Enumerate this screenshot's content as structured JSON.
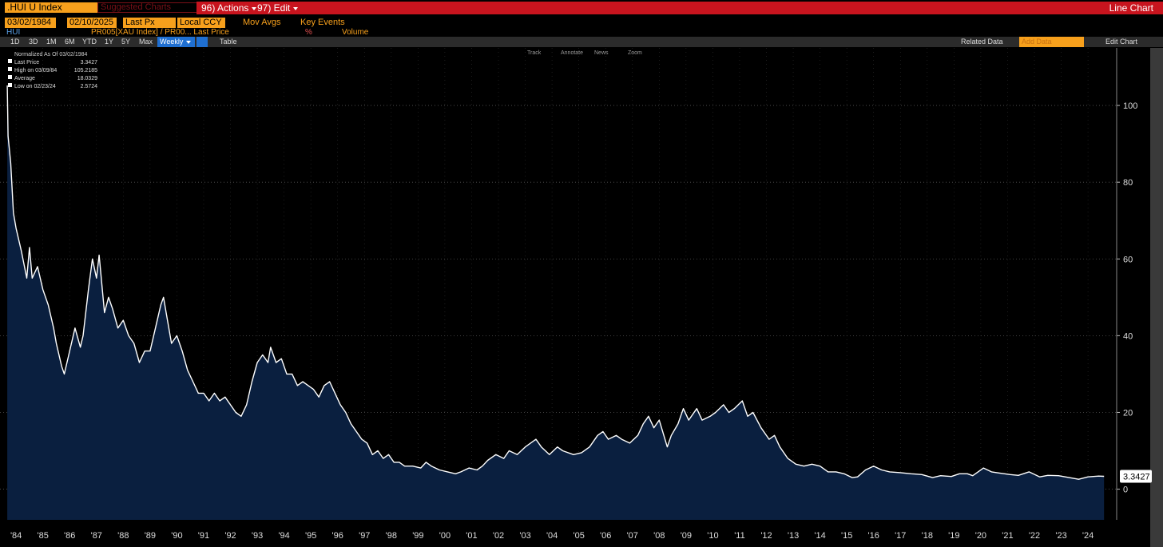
{
  "toolbar": {
    "security": ".HUI U Index",
    "suggested": "Suggested Charts",
    "actions": "96) Actions",
    "edit": "97) Edit",
    "view": "Line Chart"
  },
  "settings": {
    "start": "03/02/1984",
    "end": "02/10/2025",
    "field": "Last Px",
    "currency": "Local CCY",
    "mov_avgs": "Mov Avgs",
    "key_events": "Key Events"
  },
  "series_row": [
    "HUI",
    "PR005[XAU Index] / PR00... Last Price",
    "%",
    "Volume"
  ],
  "periods": [
    "1D",
    "3D",
    "1M",
    "6M",
    "YTD",
    "1Y",
    "5Y",
    "Max"
  ],
  "frequency": "Weekly",
  "table": "Table",
  "related": "Related Data",
  "add_data": "Add Data",
  "edit_chart": "Edit Chart",
  "chart_tools": [
    "Track",
    "Annotate",
    "News",
    "Zoom"
  ],
  "legend": {
    "title": "Normalized As Of 03/02/1984",
    "rows": [
      {
        "label": "Last Price",
        "value": 3.3427
      },
      {
        "label": "High on 03/09/84",
        "value": 105.2185
      },
      {
        "label": "Average",
        "value": 18.0329
      },
      {
        "label": "Low on 02/23/24",
        "value": 2.5724
      }
    ]
  },
  "chart_data": {
    "type": "line",
    "grid": true,
    "area_color": "#0a1f3f",
    "xlim": [
      1983.9,
      2025.57
    ],
    "ylim": [
      -8,
      115
    ],
    "yticks": [
      0,
      20,
      40,
      60,
      80,
      100
    ],
    "xticks": [
      {
        "value": 1984.5,
        "label": "'84"
      },
      {
        "value": 1985.5,
        "label": "'85"
      },
      {
        "value": 1986.5,
        "label": "'86"
      },
      {
        "value": 1987.5,
        "label": "'87"
      },
      {
        "value": 1988.5,
        "label": "'88"
      },
      {
        "value": 1989.5,
        "label": "'89"
      },
      {
        "value": 1990.5,
        "label": "'90"
      },
      {
        "value": 1991.5,
        "label": "'91"
      },
      {
        "value": 1992.5,
        "label": "'92"
      },
      {
        "value": 1993.5,
        "label": "'93"
      },
      {
        "value": 1994.5,
        "label": "'94"
      },
      {
        "value": 1995.5,
        "label": "'95"
      },
      {
        "value": 1996.5,
        "label": "'96"
      },
      {
        "value": 1997.5,
        "label": "'97"
      },
      {
        "value": 1998.5,
        "label": "'98"
      },
      {
        "value": 1999.5,
        "label": "'99"
      },
      {
        "value": 2000.5,
        "label": "'00"
      },
      {
        "value": 2001.5,
        "label": "'01"
      },
      {
        "value": 2002.5,
        "label": "'02"
      },
      {
        "value": 2003.5,
        "label": "'03"
      },
      {
        "value": 2004.5,
        "label": "'04"
      },
      {
        "value": 2005.5,
        "label": "'05"
      },
      {
        "value": 2006.5,
        "label": "'06"
      },
      {
        "value": 2007.5,
        "label": "'07"
      },
      {
        "value": 2008.5,
        "label": "'08"
      },
      {
        "value": 2009.5,
        "label": "'09"
      },
      {
        "value": 2010.5,
        "label": "'10"
      },
      {
        "value": 2011.5,
        "label": "'11"
      },
      {
        "value": 2012.5,
        "label": "'12"
      },
      {
        "value": 2013.5,
        "label": "'13"
      },
      {
        "value": 2014.5,
        "label": "'14"
      },
      {
        "value": 2015.5,
        "label": "'15"
      },
      {
        "value": 2016.5,
        "label": "'16"
      },
      {
        "value": 2017.5,
        "label": "'17"
      },
      {
        "value": 2018.5,
        "label": "'18"
      },
      {
        "value": 2019.5,
        "label": "'19"
      },
      {
        "value": 2020.5,
        "label": "'20"
      },
      {
        "value": 2021.5,
        "label": "'21"
      },
      {
        "value": 2022.5,
        "label": "'22"
      },
      {
        "value": 2023.5,
        "label": "'23"
      },
      {
        "value": 2024.5,
        "label": "'24"
      }
    ],
    "series": [
      {
        "name": "HUI",
        "color": "#ffffff",
        "x": [
          1984.17,
          1984.2,
          1984.3,
          1984.4,
          1984.5,
          1984.7,
          1984.9,
          1985.0,
          1985.1,
          1985.3,
          1985.5,
          1985.7,
          1985.9,
          1986.0,
          1986.2,
          1986.3,
          1986.5,
          1986.7,
          1986.9,
          1987.0,
          1987.2,
          1987.35,
          1987.5,
          1987.6,
          1987.8,
          1987.95,
          1988.1,
          1988.3,
          1988.5,
          1988.7,
          1988.9,
          1989.1,
          1989.3,
          1989.5,
          1989.7,
          1989.9,
          1990.0,
          1990.1,
          1990.3,
          1990.5,
          1990.7,
          1990.9,
          1991.1,
          1991.3,
          1991.5,
          1991.7,
          1991.9,
          1992.1,
          1992.3,
          1992.5,
          1992.7,
          1992.9,
          1993.1,
          1993.3,
          1993.5,
          1993.7,
          1993.9,
          1994.0,
          1994.2,
          1994.4,
          1994.6,
          1994.8,
          1995.0,
          1995.2,
          1995.4,
          1995.6,
          1995.8,
          1996.0,
          1996.2,
          1996.4,
          1996.6,
          1996.8,
          1997.0,
          1997.2,
          1997.4,
          1997.6,
          1997.8,
          1998.0,
          1998.2,
          1998.4,
          1998.6,
          1998.8,
          1999.0,
          1999.3,
          1999.6,
          1999.8,
          2000.0,
          2000.3,
          2000.6,
          2000.9,
          2001.1,
          2001.4,
          2001.7,
          2001.9,
          2002.1,
          2002.4,
          2002.7,
          2002.9,
          2003.2,
          2003.5,
          2003.9,
          2004.1,
          2004.4,
          2004.7,
          2004.9,
          2005.3,
          2005.6,
          2005.9,
          2006.2,
          2006.4,
          2006.6,
          2006.9,
          2007.1,
          2007.4,
          2007.7,
          2007.9,
          2008.1,
          2008.3,
          2008.5,
          2008.8,
          2008.95,
          2009.2,
          2009.4,
          2009.6,
          2009.9,
          2010.1,
          2010.4,
          2010.6,
          2010.9,
          2011.1,
          2011.3,
          2011.6,
          2011.8,
          2012.0,
          2012.3,
          2012.6,
          2012.8,
          2013.0,
          2013.3,
          2013.6,
          2013.9,
          2014.2,
          2014.5,
          2014.8,
          2015.1,
          2015.4,
          2015.7,
          2015.9,
          2016.2,
          2016.5,
          2016.8,
          2017.1,
          2017.5,
          2017.9,
          2018.3,
          2018.7,
          2019.0,
          2019.4,
          2019.7,
          2020.0,
          2020.2,
          2020.6,
          2020.9,
          2021.2,
          2021.6,
          2021.9,
          2022.3,
          2022.7,
          2023.0,
          2023.4,
          2023.8,
          2024.15,
          2024.5,
          2024.9,
          2025.1
        ],
        "values": [
          105.2185,
          92,
          85,
          72,
          68,
          62,
          55,
          63,
          55,
          58,
          52,
          48,
          42,
          38,
          32,
          30,
          36,
          42,
          37,
          40,
          52,
          60,
          55,
          61,
          46,
          50,
          47,
          42,
          44,
          40,
          38,
          33,
          36,
          36,
          42,
          48,
          50,
          46,
          38,
          40,
          36,
          31,
          28,
          25,
          25,
          23,
          25,
          23,
          24,
          22,
          20,
          19,
          22,
          28,
          33,
          35,
          33,
          37,
          33,
          34,
          30,
          30,
          27,
          28,
          27,
          26,
          24,
          27,
          28,
          25,
          22,
          20,
          17,
          15,
          13,
          12,
          9,
          10,
          8,
          9,
          7,
          7,
          6,
          6,
          5.5,
          7,
          6,
          5,
          4.5,
          4,
          4.5,
          5.5,
          5,
          6,
          7.5,
          9,
          8,
          10,
          9,
          11,
          13,
          11,
          9,
          11,
          10,
          9,
          9.5,
          11,
          14,
          15,
          13,
          14,
          13,
          12,
          14,
          17,
          19,
          16,
          18,
          11,
          14,
          17,
          21,
          18,
          21,
          18,
          19,
          20,
          22,
          20,
          21,
          23,
          19,
          20,
          16,
          13,
          14,
          11,
          8,
          6.5,
          6,
          6.5,
          6,
          4.5,
          4.5,
          4,
          3,
          3.2,
          5,
          6,
          5,
          4.5,
          4.3,
          4,
          3.8,
          3,
          3.5,
          3.3,
          4,
          4,
          3.5,
          5.5,
          4.5,
          4.2,
          3.8,
          3.6,
          4.5,
          3.2,
          3.6,
          3.5,
          3,
          2.5724,
          3.2,
          3.4,
          3.3427
        ]
      }
    ]
  }
}
